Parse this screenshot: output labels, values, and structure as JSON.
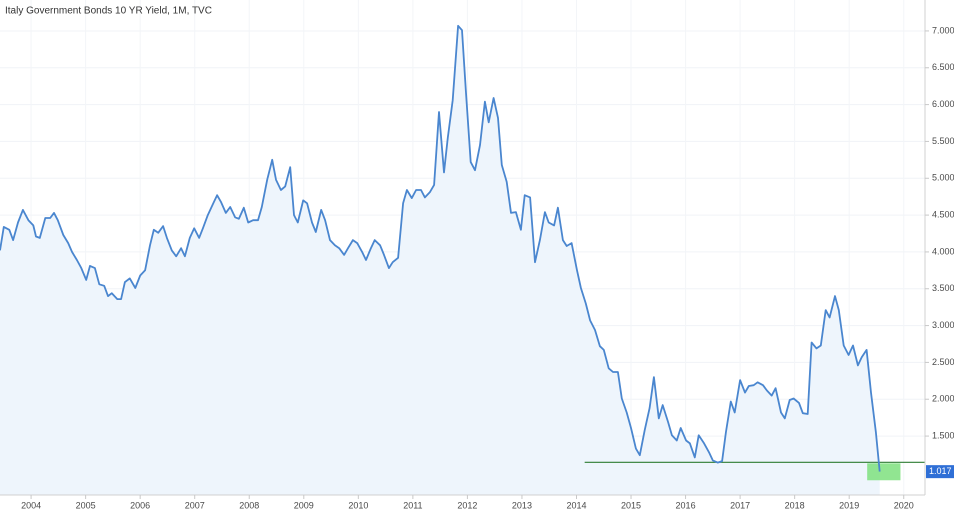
{
  "chart_data": {
    "type": "line",
    "title": "Italy Government Bonds 10 YR Yield, 1M, TVC",
    "x": [
      2003.43,
      2003.5,
      2003.6,
      2003.67,
      2003.76,
      2003.85,
      2003.95,
      2004.04,
      2004.09,
      2004.16,
      2004.26,
      2004.35,
      2004.42,
      2004.49,
      2004.59,
      2004.68,
      2004.75,
      2004.84,
      2004.92,
      2005.01,
      2005.08,
      2005.17,
      2005.25,
      2005.34,
      2005.41,
      2005.48,
      2005.58,
      2005.65,
      2005.72,
      2005.81,
      2005.91,
      2006.0,
      2006.09,
      2006.18,
      2006.25,
      2006.33,
      2006.42,
      2006.49,
      2006.58,
      2006.66,
      2006.75,
      2006.82,
      2006.91,
      2006.99,
      2007.08,
      2007.15,
      2007.24,
      2007.34,
      2007.41,
      2007.48,
      2007.57,
      2007.65,
      2007.74,
      2007.81,
      2007.9,
      2007.98,
      2008.07,
      2008.16,
      2008.23,
      2008.33,
      2008.42,
      2008.49,
      2008.58,
      2008.66,
      2008.75,
      2008.82,
      2008.89,
      2008.99,
      2009.06,
      2009.15,
      2009.22,
      2009.32,
      2009.39,
      2009.48,
      2009.57,
      2009.65,
      2009.74,
      2009.81,
      2009.9,
      2009.98,
      2010.07,
      2010.14,
      2010.23,
      2010.3,
      2010.4,
      2010.47,
      2010.56,
      2010.63,
      2010.73,
      2010.82,
      2010.89,
      2010.98,
      2011.06,
      2011.15,
      2011.22,
      2011.31,
      2011.39,
      2011.48,
      2011.57,
      2011.64,
      2011.73,
      2011.83,
      2011.9,
      2011.97,
      2012.06,
      2012.14,
      2012.23,
      2012.32,
      2012.39,
      2012.48,
      2012.56,
      2012.63,
      2012.72,
      2012.8,
      2012.89,
      2012.98,
      2013.05,
      2013.15,
      2013.24,
      2013.33,
      2013.42,
      2013.49,
      2013.59,
      2013.66,
      2013.75,
      2013.82,
      2013.91,
      2014.01,
      2014.08,
      2014.17,
      2014.25,
      2014.34,
      2014.43,
      2014.5,
      2014.59,
      2014.67,
      2014.76,
      2014.83,
      2014.92,
      2015.0,
      2015.09,
      2015.16,
      2015.25,
      2015.34,
      2015.42,
      2015.51,
      2015.58,
      2015.68,
      2015.75,
      2015.84,
      2015.91,
      2016.01,
      2016.08,
      2016.17,
      2016.24,
      2016.34,
      2016.43,
      2016.5,
      2016.59,
      2016.67,
      2016.74,
      2016.83,
      2016.9,
      2017.0,
      2017.09,
      2017.16,
      2017.25,
      2017.32,
      2017.42,
      2017.49,
      2017.58,
      2017.65,
      2017.75,
      2017.82,
      2017.91,
      2017.98,
      2018.08,
      2018.15,
      2018.24,
      2018.31,
      2018.4,
      2018.48,
      2018.57,
      2018.64,
      2018.74,
      2018.81,
      2018.9,
      2018.99,
      2019.07,
      2019.16,
      2019.23,
      2019.32,
      2019.4,
      2019.49,
      2019.56
    ],
    "series": [
      {
        "name": "Italy Government Bonds 10 YR Yield",
        "color": "#4a86cf",
        "area_color": "#eef5fc",
        "values": [
          4.02,
          4.34,
          4.3,
          4.16,
          4.4,
          4.57,
          4.43,
          4.36,
          4.21,
          4.19,
          4.46,
          4.46,
          4.53,
          4.43,
          4.23,
          4.12,
          4.0,
          3.89,
          3.78,
          3.62,
          3.81,
          3.78,
          3.56,
          3.54,
          3.4,
          3.44,
          3.36,
          3.36,
          3.59,
          3.64,
          3.51,
          3.68,
          3.75,
          4.09,
          4.3,
          4.26,
          4.35,
          4.19,
          4.02,
          3.94,
          4.05,
          3.94,
          4.19,
          4.32,
          4.19,
          4.32,
          4.5,
          4.66,
          4.77,
          4.68,
          4.53,
          4.61,
          4.47,
          4.45,
          4.6,
          4.4,
          4.43,
          4.43,
          4.61,
          4.98,
          5.25,
          4.98,
          4.84,
          4.89,
          5.15,
          4.5,
          4.4,
          4.7,
          4.66,
          4.4,
          4.27,
          4.57,
          4.43,
          4.16,
          4.09,
          4.05,
          3.96,
          4.05,
          4.16,
          4.12,
          4.0,
          3.89,
          4.05,
          4.16,
          4.09,
          3.96,
          3.78,
          3.86,
          3.92,
          4.66,
          4.84,
          4.73,
          4.84,
          4.84,
          4.74,
          4.81,
          4.91,
          5.9,
          5.08,
          5.55,
          6.06,
          7.07,
          7.01,
          6.2,
          5.22,
          5.11,
          5.45,
          6.04,
          5.76,
          6.09,
          5.82,
          5.18,
          4.95,
          4.53,
          4.54,
          4.3,
          4.77,
          4.74,
          3.86,
          4.16,
          4.54,
          4.4,
          4.36,
          4.6,
          4.16,
          4.08,
          4.12,
          3.75,
          3.51,
          3.3,
          3.07,
          2.94,
          2.72,
          2.67,
          2.42,
          2.37,
          2.37,
          2.01,
          1.82,
          1.61,
          1.33,
          1.24,
          1.58,
          1.88,
          2.3,
          1.74,
          1.92,
          1.69,
          1.51,
          1.44,
          1.61,
          1.44,
          1.4,
          1.21,
          1.51,
          1.4,
          1.28,
          1.17,
          1.14,
          1.16,
          1.55,
          1.97,
          1.82,
          2.26,
          2.09,
          2.18,
          2.19,
          2.23,
          2.19,
          2.12,
          2.05,
          2.15,
          1.82,
          1.74,
          1.99,
          2.01,
          1.95,
          1.81,
          1.8,
          2.77,
          2.69,
          2.73,
          3.21,
          3.11,
          3.4,
          3.21,
          2.73,
          2.6,
          2.73,
          2.46,
          2.57,
          2.67,
          2.09,
          1.55,
          1.017
        ]
      }
    ],
    "last_price": {
      "value": 1.017,
      "label": "1.017",
      "color": "#2f6fd6"
    },
    "support_line": {
      "value": 1.144,
      "x_start": 2014.15,
      "color": "#2e7d32"
    },
    "highlight": {
      "xlim": [
        2019.33,
        2019.94
      ],
      "ylim": [
        0.9,
        1.13
      ],
      "color": "#7ee07e"
    },
    "xlim": [
      2003.43,
      2020.39
    ],
    "xticks": [
      2004,
      2005,
      2006,
      2007,
      2008,
      2009,
      2010,
      2011,
      2012,
      2013,
      2014,
      2015,
      2016,
      2017,
      2018,
      2019,
      2020
    ],
    "ylim": [
      0.7,
      7.42
    ],
    "yticks": [
      {
        "value": 1.5,
        "label": "1.500"
      },
      {
        "value": 2,
        "label": "2.000"
      },
      {
        "value": 2.5,
        "label": "2.500"
      },
      {
        "value": 3,
        "label": "3.000"
      },
      {
        "value": 3.5,
        "label": "3.500"
      },
      {
        "value": 4,
        "label": "4.000"
      },
      {
        "value": 4.5,
        "label": "4.500"
      },
      {
        "value": 5,
        "label": "5.000"
      },
      {
        "value": 5.5,
        "label": "5.500"
      },
      {
        "value": 6,
        "label": "6.000"
      },
      {
        "value": 6.5,
        "label": "6.500"
      },
      {
        "value": 7,
        "label": "7.000"
      }
    ],
    "grid": true
  }
}
